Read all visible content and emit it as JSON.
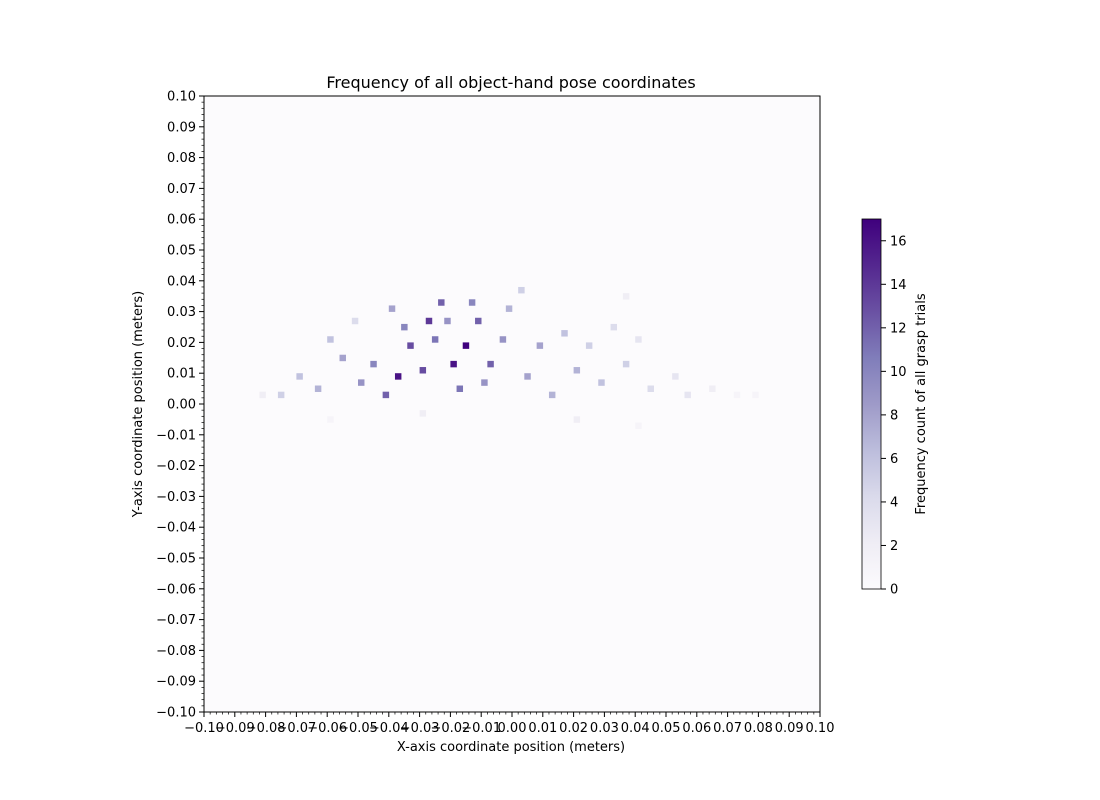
{
  "chart_data": {
    "type": "heatmap",
    "title": "Frequency of all object-hand pose coordinates",
    "xlabel": "X-axis coordinate position (meters)",
    "ylabel": "Y-axis coordinate position (meters)",
    "xlim": [
      -0.1,
      0.1
    ],
    "ylim": [
      -0.1,
      0.1
    ],
    "bin_width": 0.002,
    "xticks": [
      "−0.10",
      "−0.09",
      "−0.08",
      "−0.07",
      "−0.06",
      "−0.05",
      "−0.04",
      "−0.03",
      "−0.02",
      "−0.01",
      "0.00",
      "0.01",
      "0.02",
      "0.03",
      "0.04",
      "0.05",
      "0.06",
      "0.07",
      "0.08",
      "0.09",
      "0.10"
    ],
    "yticks": [
      "0.10",
      "0.09",
      "0.08",
      "0.07",
      "0.06",
      "0.05",
      "0.04",
      "0.03",
      "0.02",
      "0.01",
      "0.00",
      "−0.01",
      "−0.02",
      "−0.03",
      "−0.04",
      "−0.05",
      "−0.06",
      "−0.07",
      "−0.08",
      "−0.09",
      "−0.10"
    ],
    "colorbar": {
      "label": "Frequency count of all grasp trials",
      "vmin": 0,
      "vmax": 17,
      "ticks": [
        "0",
        "2",
        "4",
        "6",
        "8",
        "10",
        "12",
        "14",
        "16"
      ],
      "colormap": "Purples",
      "colors": [
        "#fcfbfd",
        "#efedf5",
        "#dadaeb",
        "#bcbddc",
        "#9e9ac8",
        "#807dba",
        "#6a51a3",
        "#54278f",
        "#3f007d"
      ]
    },
    "grid": false,
    "notes": "Counts concentrated in x from -0.08 to 0.08 and y from -0.01 to 0.04, with highest counts (up to ~17) around x -0.045 to -0.01, y 0.00 to 0.03.",
    "bins": [
      {
        "x": -0.038,
        "y": 0.008,
        "v": 16
      },
      {
        "x": -0.016,
        "y": 0.018,
        "v": 17
      },
      {
        "x": -0.02,
        "y": 0.012,
        "v": 16
      },
      {
        "x": -0.028,
        "y": 0.026,
        "v": 14
      },
      {
        "x": -0.034,
        "y": 0.018,
        "v": 13
      },
      {
        "x": -0.024,
        "y": 0.032,
        "v": 12
      },
      {
        "x": -0.012,
        "y": 0.026,
        "v": 12
      },
      {
        "x": -0.042,
        "y": 0.002,
        "v": 12
      },
      {
        "x": -0.03,
        "y": 0.01,
        "v": 13
      },
      {
        "x": -0.008,
        "y": 0.012,
        "v": 12
      },
      {
        "x": -0.018,
        "y": 0.004,
        "v": 11
      },
      {
        "x": -0.026,
        "y": 0.02,
        "v": 11
      },
      {
        "x": -0.014,
        "y": 0.032,
        "v": 10
      },
      {
        "x": -0.046,
        "y": 0.012,
        "v": 10
      },
      {
        "x": -0.036,
        "y": 0.024,
        "v": 10
      },
      {
        "x": -0.004,
        "y": 0.02,
        "v": 9
      },
      {
        "x": -0.05,
        "y": 0.006,
        "v": 9
      },
      {
        "x": -0.01,
        "y": 0.006,
        "v": 9
      },
      {
        "x": -0.022,
        "y": 0.026,
        "v": 9
      },
      {
        "x": 0.004,
        "y": 0.008,
        "v": 8
      },
      {
        "x": 0.008,
        "y": 0.018,
        "v": 8
      },
      {
        "x": -0.056,
        "y": 0.014,
        "v": 8
      },
      {
        "x": -0.04,
        "y": 0.03,
        "v": 8
      },
      {
        "x": -0.064,
        "y": 0.004,
        "v": 7
      },
      {
        "x": 0.012,
        "y": 0.002,
        "v": 7
      },
      {
        "x": 0.02,
        "y": 0.01,
        "v": 7
      },
      {
        "x": -0.002,
        "y": 0.03,
        "v": 7
      },
      {
        "x": 0.016,
        "y": 0.022,
        "v": 6
      },
      {
        "x": -0.07,
        "y": 0.008,
        "v": 6
      },
      {
        "x": 0.028,
        "y": 0.006,
        "v": 6
      },
      {
        "x": -0.06,
        "y": 0.02,
        "v": 6
      },
      {
        "x": 0.002,
        "y": 0.036,
        "v": 5
      },
      {
        "x": 0.036,
        "y": 0.012,
        "v": 5
      },
      {
        "x": 0.024,
        "y": 0.018,
        "v": 5
      },
      {
        "x": -0.076,
        "y": 0.002,
        "v": 5
      },
      {
        "x": 0.044,
        "y": 0.004,
        "v": 4
      },
      {
        "x": 0.032,
        "y": 0.024,
        "v": 4
      },
      {
        "x": -0.052,
        "y": 0.026,
        "v": 4
      },
      {
        "x": 0.052,
        "y": 0.008,
        "v": 3
      },
      {
        "x": 0.056,
        "y": 0.002,
        "v": 3
      },
      {
        "x": 0.04,
        "y": 0.02,
        "v": 3
      },
      {
        "x": -0.082,
        "y": 0.002,
        "v": 2
      },
      {
        "x": 0.064,
        "y": 0.004,
        "v": 2
      },
      {
        "x": 0.072,
        "y": 0.002,
        "v": 1
      },
      {
        "x": 0.078,
        "y": 0.002,
        "v": 1
      },
      {
        "x": 0.036,
        "y": 0.034,
        "v": 2
      },
      {
        "x": -0.03,
        "y": -0.004,
        "v": 2
      },
      {
        "x": 0.02,
        "y": -0.006,
        "v": 2
      },
      {
        "x": 0.04,
        "y": -0.008,
        "v": 1
      },
      {
        "x": -0.06,
        "y": -0.006,
        "v": 1
      }
    ]
  }
}
